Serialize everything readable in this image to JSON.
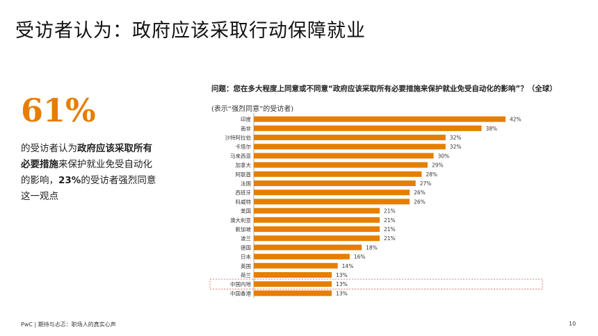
{
  "slide": {
    "title": "受访者认为：政府应该采取行动保障就业",
    "highlight_value": "61%",
    "desc_line1_pre": "的受访者认为",
    "desc_line1_bold": "政府应该采取所有",
    "desc_line2_bold": "必要措施",
    "desc_line2_post": "来保护就业免受自动化",
    "desc_line3_pre": "的影响，",
    "desc_line3_bold": "23%",
    "desc_line3_post": "的受访者强烈同意",
    "desc_line4": "这一观点",
    "question": "问题：您在多大程度上同意或不同意“政府应该采取所有必要措施来保护就业免受自动化的影响”？（全球）",
    "note": "(表示“强烈同意”的受访者)",
    "footer": "PwC | 期待与忐忑：职场人的真实心声",
    "page_number": "10"
  },
  "colors": {
    "bar": "#e67e00",
    "highlight_box": "#d9534f",
    "axis": "#999999"
  },
  "chart_data": {
    "type": "bar",
    "orientation": "horizontal",
    "categories": [
      "印度",
      "南非",
      "沙特阿拉伯",
      "卡塔尔",
      "马来西亚",
      "加拿大",
      "阿联酋",
      "法国",
      "西班牙",
      "科威特",
      "美国",
      "澳大利亚",
      "新加坡",
      "波兰",
      "德国",
      "日本",
      "英国",
      "荷兰",
      "中国内地",
      "中国香港"
    ],
    "values": [
      42,
      38,
      32,
      32,
      30,
      29,
      28,
      27,
      26,
      26,
      21,
      21,
      21,
      21,
      18,
      16,
      14,
      13,
      13,
      13
    ],
    "value_labels": [
      "42%",
      "38%",
      "32%",
      "32%",
      "30%",
      "29%",
      "28%",
      "27%",
      "26%",
      "26%",
      "21%",
      "21%",
      "21%",
      "21%",
      "18%",
      "16%",
      "14%",
      "13%",
      "13%",
      "13%"
    ],
    "highlighted_category": "中国内地",
    "xlim": [
      0,
      42
    ]
  }
}
